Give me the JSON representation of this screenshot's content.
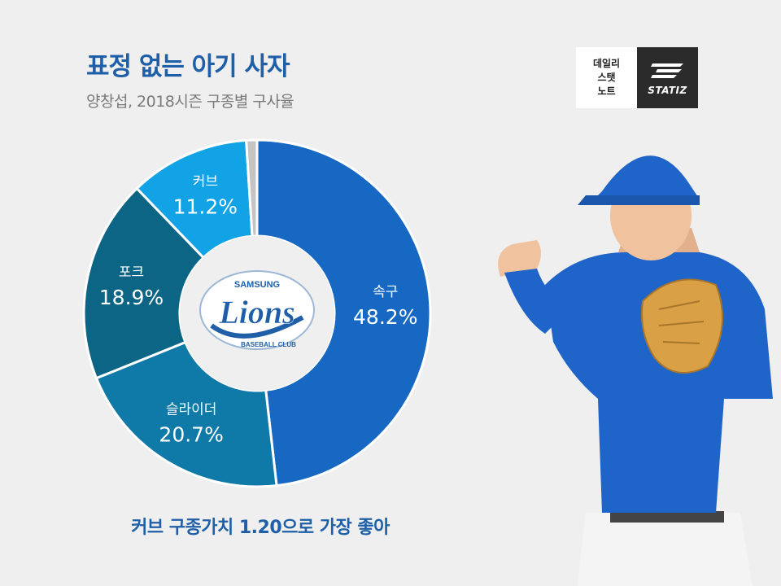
{
  "header": {
    "title": "표정 없는 아기 사자",
    "subtitle": "양창섭, 2018시즌 구종별 구사율"
  },
  "brand": {
    "label_lines": [
      "데일리",
      "스탯",
      "노트"
    ],
    "wordmark": "STATIZ"
  },
  "logo": {
    "team": "SAMSUNG",
    "name": "Lions",
    "club": "BASEBALL CLUB"
  },
  "footer": {
    "note": "커브 구종가치 1.20으로 가장 좋아"
  },
  "chart_data": {
    "type": "pie",
    "variant": "donut",
    "title": "양창섭, 2018시즌 구종별 구사율",
    "unit": "%",
    "slices": [
      {
        "label": "속구",
        "value": 48.2,
        "display": "48.2%",
        "color": "#1668c2"
      },
      {
        "label": "슬라이더",
        "value": 20.7,
        "display": "20.7%",
        "color": "#0f79a8"
      },
      {
        "label": "포크",
        "value": 18.9,
        "display": "18.9%",
        "color": "#0d6585"
      },
      {
        "label": "커브",
        "value": 11.2,
        "display": "11.2%",
        "color": "#11a3e6"
      },
      {
        "label": "",
        "value": 1.0,
        "display": "",
        "color": "#c4c4c4"
      }
    ]
  },
  "colors": {
    "title": "#1f5fa8",
    "subtitle": "#7a7a7a",
    "background": "#efefef"
  }
}
